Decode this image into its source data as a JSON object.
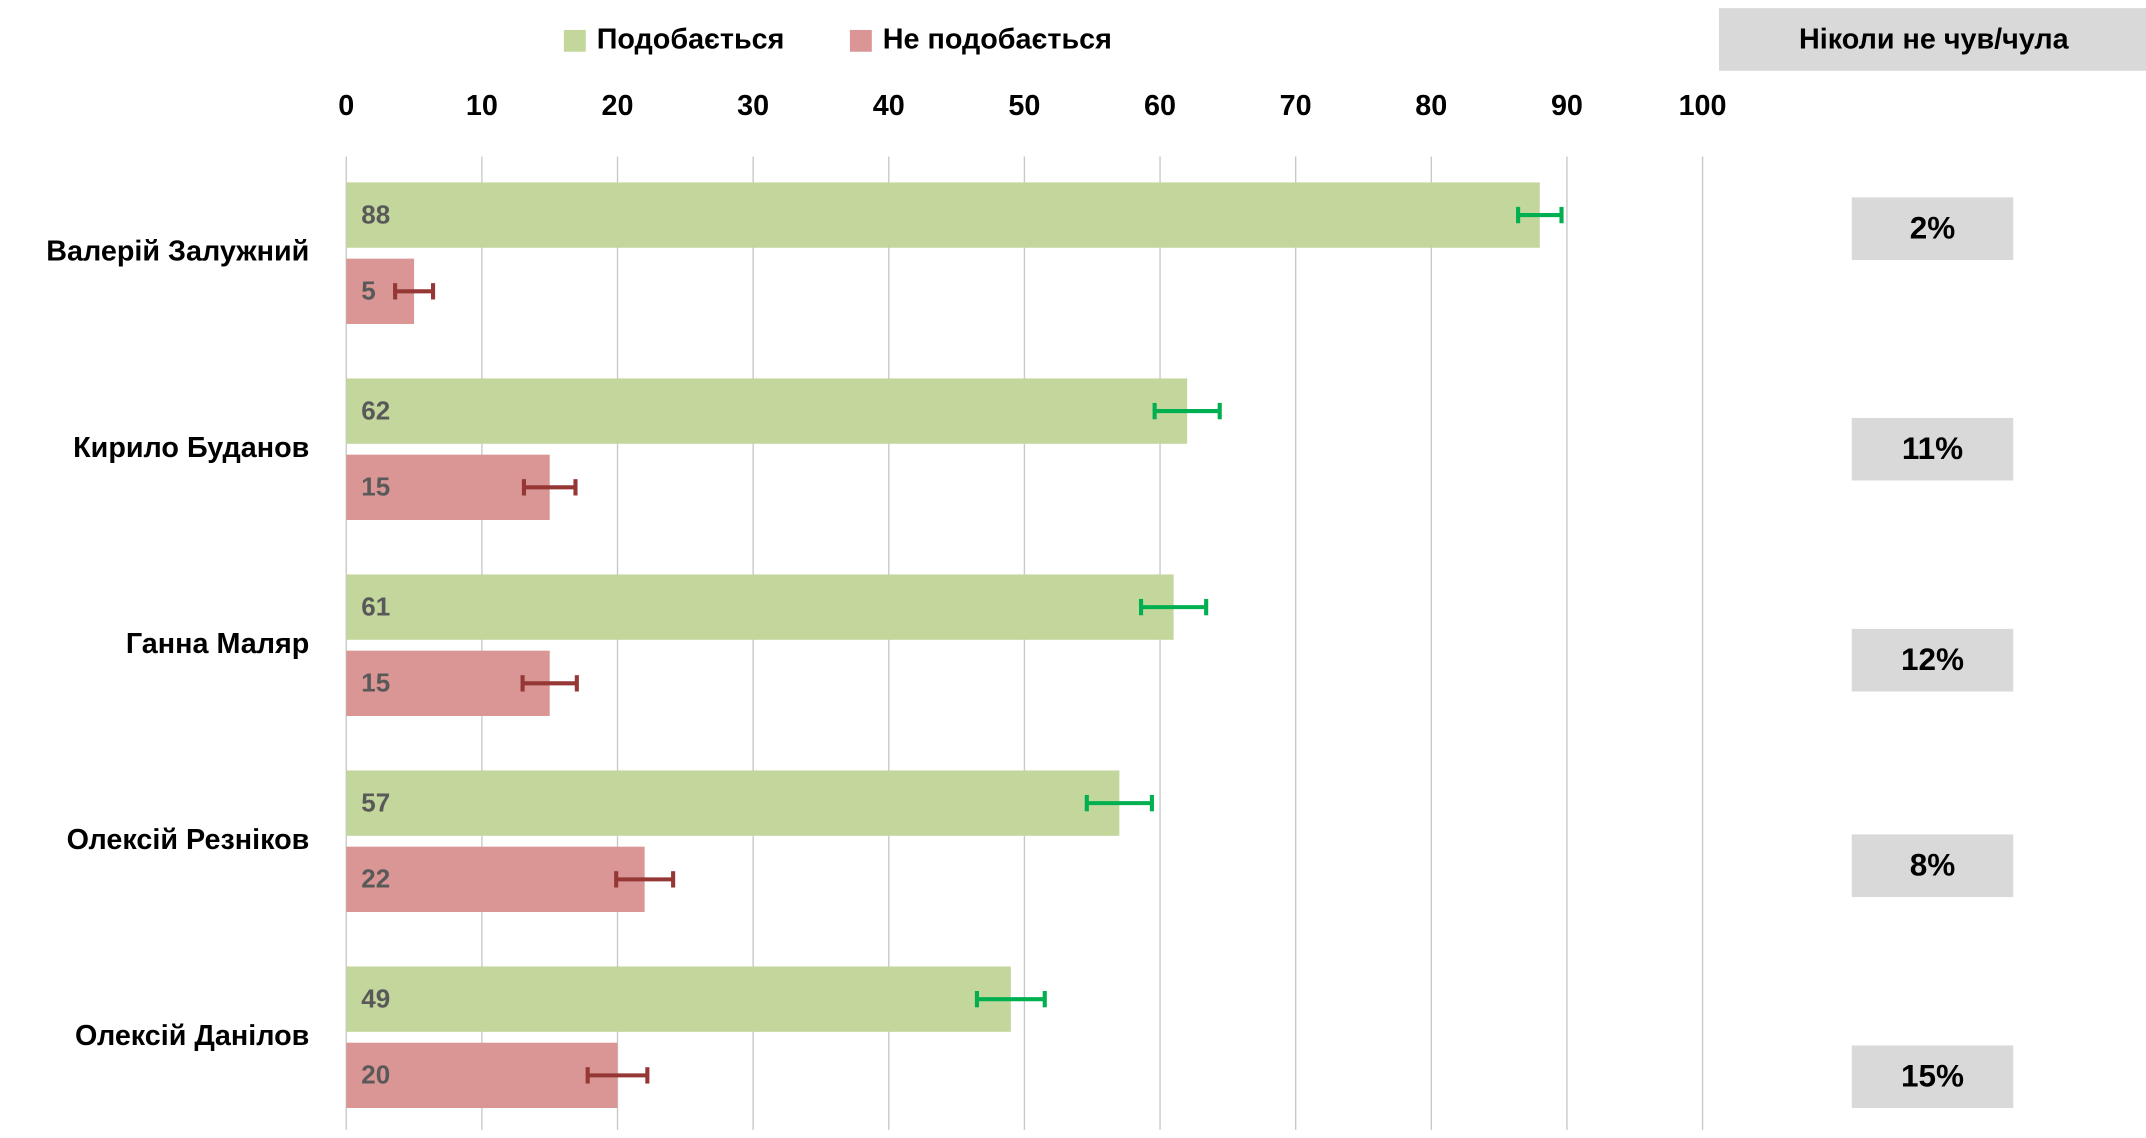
{
  "chart_data": {
    "type": "bar",
    "orientation": "horizontal",
    "categories": [
      "Валерій Залужний",
      "Кирило Буданов",
      "Ганна Маляр",
      "Олексій Резніков",
      "Олексій Данілов"
    ],
    "series": [
      {
        "name": "Подобається",
        "color": "#c3d69b",
        "error_color": "#00b050",
        "values": [
          88,
          62,
          61,
          57,
          49
        ],
        "errors": [
          1.6,
          2.4,
          2.4,
          2.4,
          2.5
        ]
      },
      {
        "name": "Не подобається",
        "color": "#d99694",
        "error_color": "#953735",
        "values": [
          5,
          15,
          15,
          22,
          20
        ],
        "errors": [
          1.4,
          1.9,
          2,
          2.1,
          2.2
        ]
      }
    ],
    "xlim": [
      0,
      100
    ],
    "xticks": [
      0,
      10,
      20,
      30,
      40,
      50,
      60,
      70,
      80,
      90,
      100
    ],
    "grid": true,
    "legend": "top",
    "never_heard": {
      "title": "Ніколи не чув/чула",
      "values": [
        2,
        11,
        12,
        8,
        15
      ],
      "value_labels": [
        "2%",
        "11%",
        "12%",
        "8%",
        "15%"
      ],
      "color": "#d9d9d9"
    }
  }
}
